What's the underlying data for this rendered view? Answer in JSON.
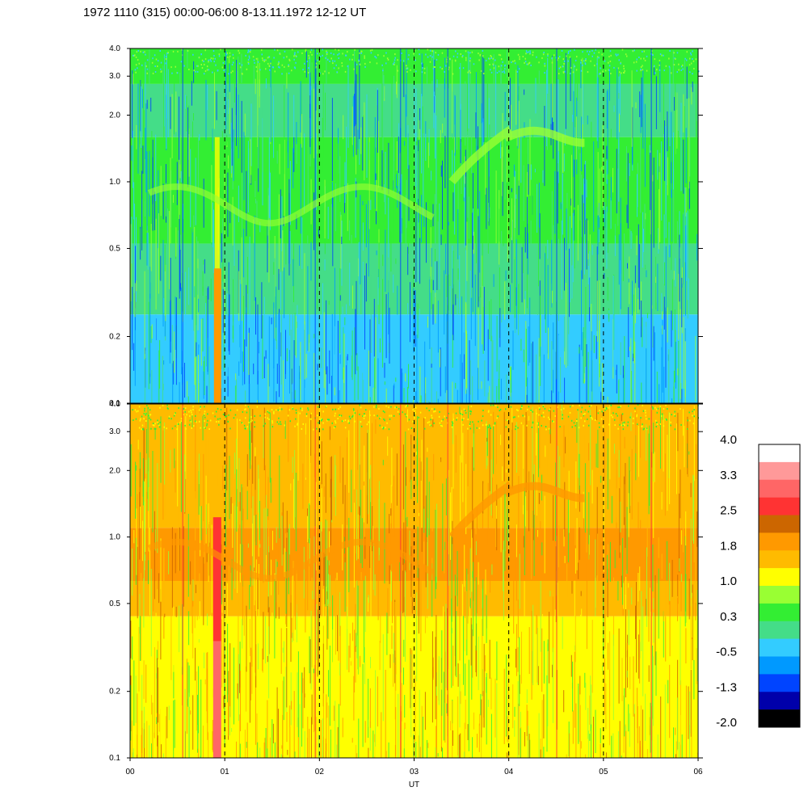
{
  "title": "1972 1110 (315) 00:00-06:00 8-13.11.1972  12-12 UT",
  "chart_data": {
    "type": "heatmap",
    "title": "1972 1110 (315) 00:00-06:00 8-13.11.1972  12-12 UT",
    "xlabel": "UT",
    "ylabel": "",
    "x_ticks": [
      "00",
      "01",
      "02",
      "03",
      "04",
      "05",
      "06"
    ],
    "x_range": [
      0,
      6
    ],
    "y_scale": "log",
    "y_range": [
      0.1,
      4.0
    ],
    "y_ticks": [
      {
        "value": 0.1,
        "label": "0.1"
      },
      {
        "value": 0.2,
        "label": "0.2"
      },
      {
        "value": 0.5,
        "label": "0.5"
      },
      {
        "value": 1.0,
        "label": "1.0"
      },
      {
        "value": 2.0,
        "label": "2.0"
      },
      {
        "value": 3.0,
        "label": "3.0"
      },
      {
        "value": 4.0,
        "label": "4.0"
      }
    ],
    "dashed_verticals": [
      1,
      2,
      3,
      4,
      5
    ],
    "panels": [
      {
        "name": "upper",
        "base_level": "green-cyan"
      },
      {
        "name": "lower",
        "base_level": "yellow-orange"
      }
    ],
    "colorbar": {
      "labels": [
        "4.0",
        "3.3",
        "2.5",
        "1.8",
        "1.0",
        "0.3",
        "-0.5",
        "-1.3",
        "-2.0"
      ],
      "colors": [
        "#ffffff",
        "#ff9999",
        "#ff6666",
        "#ff3333",
        "#cc6600",
        "#ff9900",
        "#ffbb00",
        "#ffff00",
        "#99ff33",
        "#33ee33",
        "#44dd88",
        "#33ccff",
        "#0099ff",
        "#0044ff",
        "#0000aa",
        "#000000"
      ]
    }
  }
}
